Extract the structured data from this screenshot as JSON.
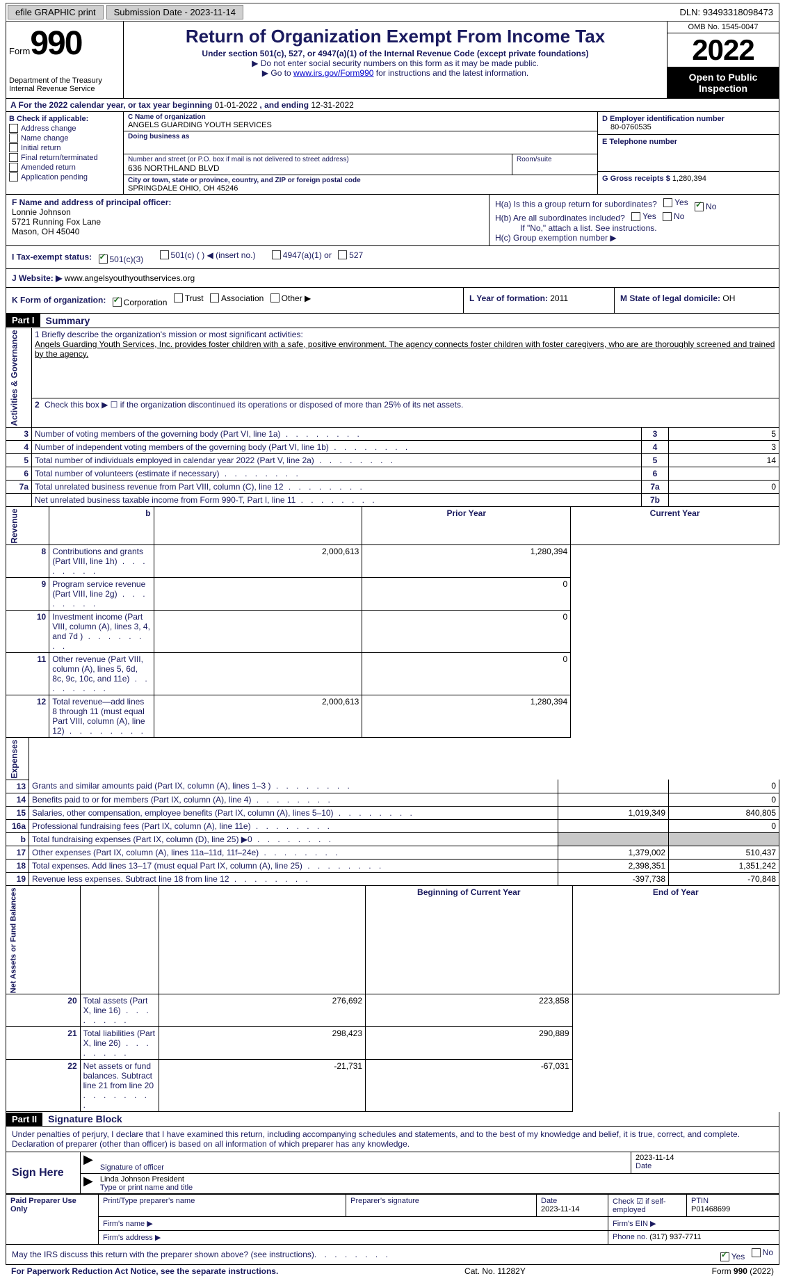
{
  "topbar": {
    "efile": "efile GRAPHIC print",
    "submission_label": "Submission Date - 2023-11-14",
    "dln_label": "DLN: 93493318098473"
  },
  "header": {
    "form_word": "Form",
    "form_num": "990",
    "dept": "Department of the Treasury Internal Revenue Service",
    "title": "Return of Organization Exempt From Income Tax",
    "sub": "Under section 501(c), 527, or 4947(a)(1) of the Internal Revenue Code (except private foundations)",
    "line1": "▶ Do not enter social security numbers on this form as it may be made public.",
    "line2_pre": "▶ Go to ",
    "line2_link": "www.irs.gov/Form990",
    "line2_post": " for instructions and the latest information.",
    "omb": "OMB No. 1545-0047",
    "year": "2022",
    "open": "Open to Public Inspection"
  },
  "rowA": {
    "label": "A For the 2022 calendar year, or tax year beginning ",
    "begin": "01-01-2022",
    "mid": "   , and ending ",
    "end": "12-31-2022"
  },
  "colB": {
    "hdr": "B Check if applicable:",
    "items": [
      "Address change",
      "Name change",
      "Initial return",
      "Final return/terminated",
      "Amended return",
      "Application pending"
    ]
  },
  "colC": {
    "name_lbl": "C Name of organization",
    "name": "ANGELS GUARDING YOUTH SERVICES",
    "dba_lbl": "Doing business as",
    "addr_lbl": "Number and street (or P.O. box if mail is not delivered to street address)",
    "room_lbl": "Room/suite",
    "addr": "636 NORTHLAND BLVD",
    "city_lbl": "City or town, state or province, country, and ZIP or foreign postal code",
    "city": "SPRINGDALE OHIO, OH  45246"
  },
  "colD": {
    "ein_lbl": "D Employer identification number",
    "ein": "80-0760535",
    "tel_lbl": "E Telephone number",
    "gross_lbl": "G Gross receipts $ ",
    "gross": "1,280,394"
  },
  "colF": {
    "lbl": "F Name and address of principal officer:",
    "name": "Lonnie Johnson",
    "addr1": "5721 Running Fox Lane",
    "addr2": "Mason, OH  45040"
  },
  "colH": {
    "a": "H(a)  Is this a group return for subordinates?",
    "b": "H(b)  Are all subordinates included?",
    "note": "If \"No,\" attach a list. See instructions.",
    "c": "H(c)  Group exemption number ▶",
    "yes": "Yes",
    "no": "No"
  },
  "rowI": {
    "lbl": "I   Tax-exempt status:",
    "opt1": "501(c)(3)",
    "opt2": "501(c) (  ) ◀ (insert no.)",
    "opt3": "4947(a)(1) or",
    "opt4": "527"
  },
  "rowJ": {
    "lbl": "J  Website: ▶",
    "val": "  www.angelsyouthyouthservices.org"
  },
  "rowK": {
    "lbl": "K Form of organization:",
    "o1": "Corporation",
    "o2": "Trust",
    "o3": "Association",
    "o4": "Other ▶"
  },
  "rowL": {
    "lbl": "L Year of formation: ",
    "val": "2011"
  },
  "rowM": {
    "lbl": "M State of legal domicile: ",
    "val": "OH"
  },
  "part1": {
    "hdr": "Part I",
    "title": "Summary"
  },
  "mission": {
    "lbl": "1  Briefly describe the organization's mission or most significant activities:",
    "text": "Angels Guarding Youth Services, Inc. provides foster children with a safe, positive environment. The agency connects foster children with foster caregivers, who are are thoroughly screened and trained by the agency."
  },
  "line2": "Check this box ▶ ☐ if the organization discontinued its operations or disposed of more than 25% of its net assets.",
  "lines_gov": [
    {
      "n": "3",
      "t": "Number of voting members of the governing body (Part VI, line 1a)",
      "box": "3",
      "v": "5"
    },
    {
      "n": "4",
      "t": "Number of independent voting members of the governing body (Part VI, line 1b)",
      "box": "4",
      "v": "3"
    },
    {
      "n": "5",
      "t": "Total number of individuals employed in calendar year 2022 (Part V, line 2a)",
      "box": "5",
      "v": "14"
    },
    {
      "n": "6",
      "t": "Total number of volunteers (estimate if necessary)",
      "box": "6",
      "v": ""
    },
    {
      "n": "7a",
      "t": "Total unrelated business revenue from Part VIII, column (C), line 12",
      "box": "7a",
      "v": "0"
    },
    {
      "n": "",
      "t": "Net unrelated business taxable income from Form 990-T, Part I, line 11",
      "box": "7b",
      "v": ""
    }
  ],
  "vtabs": {
    "gov": "Activities & Governance",
    "rev": "Revenue",
    "exp": "Expenses",
    "net": "Net Assets or Fund Balances"
  },
  "cols": {
    "prior": "Prior Year",
    "curr": "Current Year",
    "beg": "Beginning of Current Year",
    "end": "End of Year"
  },
  "lines_rev": [
    {
      "n": "8",
      "t": "Contributions and grants (Part VIII, line 1h)",
      "p": "2,000,613",
      "c": "1,280,394"
    },
    {
      "n": "9",
      "t": "Program service revenue (Part VIII, line 2g)",
      "p": "",
      "c": "0"
    },
    {
      "n": "10",
      "t": "Investment income (Part VIII, column (A), lines 3, 4, and 7d )",
      "p": "",
      "c": "0"
    },
    {
      "n": "11",
      "t": "Other revenue (Part VIII, column (A), lines 5, 6d, 8c, 9c, 10c, and 11e)",
      "p": "",
      "c": "0"
    },
    {
      "n": "12",
      "t": "Total revenue—add lines 8 through 11 (must equal Part VIII, column (A), line 12)",
      "p": "2,000,613",
      "c": "1,280,394"
    }
  ],
  "lines_exp": [
    {
      "n": "13",
      "t": "Grants and similar amounts paid (Part IX, column (A), lines 1–3 )",
      "p": "",
      "c": "0"
    },
    {
      "n": "14",
      "t": "Benefits paid to or for members (Part IX, column (A), line 4)",
      "p": "",
      "c": "0"
    },
    {
      "n": "15",
      "t": "Salaries, other compensation, employee benefits (Part IX, column (A), lines 5–10)",
      "p": "1,019,349",
      "c": "840,805"
    },
    {
      "n": "16a",
      "t": "Professional fundraising fees (Part IX, column (A), line 11e)",
      "p": "",
      "c": "0"
    },
    {
      "n": "b",
      "t": "Total fundraising expenses (Part IX, column (D), line 25) ▶0",
      "p": "GREY",
      "c": "GREY"
    },
    {
      "n": "17",
      "t": "Other expenses (Part IX, column (A), lines 11a–11d, 11f–24e)",
      "p": "1,379,002",
      "c": "510,437"
    },
    {
      "n": "18",
      "t": "Total expenses. Add lines 13–17 (must equal Part IX, column (A), line 25)",
      "p": "2,398,351",
      "c": "1,351,242"
    },
    {
      "n": "19",
      "t": "Revenue less expenses. Subtract line 18 from line 12",
      "p": "-397,738",
      "c": "-70,848"
    }
  ],
  "lines_net": [
    {
      "n": "20",
      "t": "Total assets (Part X, line 16)",
      "p": "276,692",
      "c": "223,858"
    },
    {
      "n": "21",
      "t": "Total liabilities (Part X, line 26)",
      "p": "298,423",
      "c": "290,889"
    },
    {
      "n": "22",
      "t": "Net assets or fund balances. Subtract line 21 from line 20",
      "p": "-21,731",
      "c": "-67,031"
    }
  ],
  "part2": {
    "hdr": "Part II",
    "title": "Signature Block"
  },
  "sig": {
    "intro": "Under penalties of perjury, I declare that I have examined this return, including accompanying schedules and statements, and to the best of my knowledge and belief, it is true, correct, and complete. Declaration of preparer (other than officer) is based on all information of which preparer has any knowledge.",
    "sign_here": "Sign Here",
    "date": "2023-11-14",
    "sig_lbl": "Signature of officer",
    "date_lbl": "Date",
    "name": "Linda Johnson  President",
    "name_lbl": "Type or print name and title"
  },
  "paid": {
    "title": "Paid Preparer Use Only",
    "c1": "Print/Type preparer's name",
    "c2": "Preparer's signature",
    "c3_lbl": "Date",
    "c3": "2023-11-14",
    "c4": "Check ☑ if self-employed",
    "c5_lbl": "PTIN",
    "c5": "P01468699",
    "firm_name": "Firm's name   ▶",
    "firm_ein": "Firm's EIN ▶",
    "firm_addr": "Firm's address ▶",
    "phone_lbl": "Phone no. ",
    "phone": "(317) 937-7711"
  },
  "footer": {
    "q": "May the IRS discuss this return with the preparer shown above? (see instructions)",
    "yes": "Yes",
    "no": "No",
    "pra": "For Paperwork Reduction Act Notice, see the separate instructions.",
    "cat": "Cat. No. 11282Y",
    "form": "Form 990 (2022)"
  }
}
